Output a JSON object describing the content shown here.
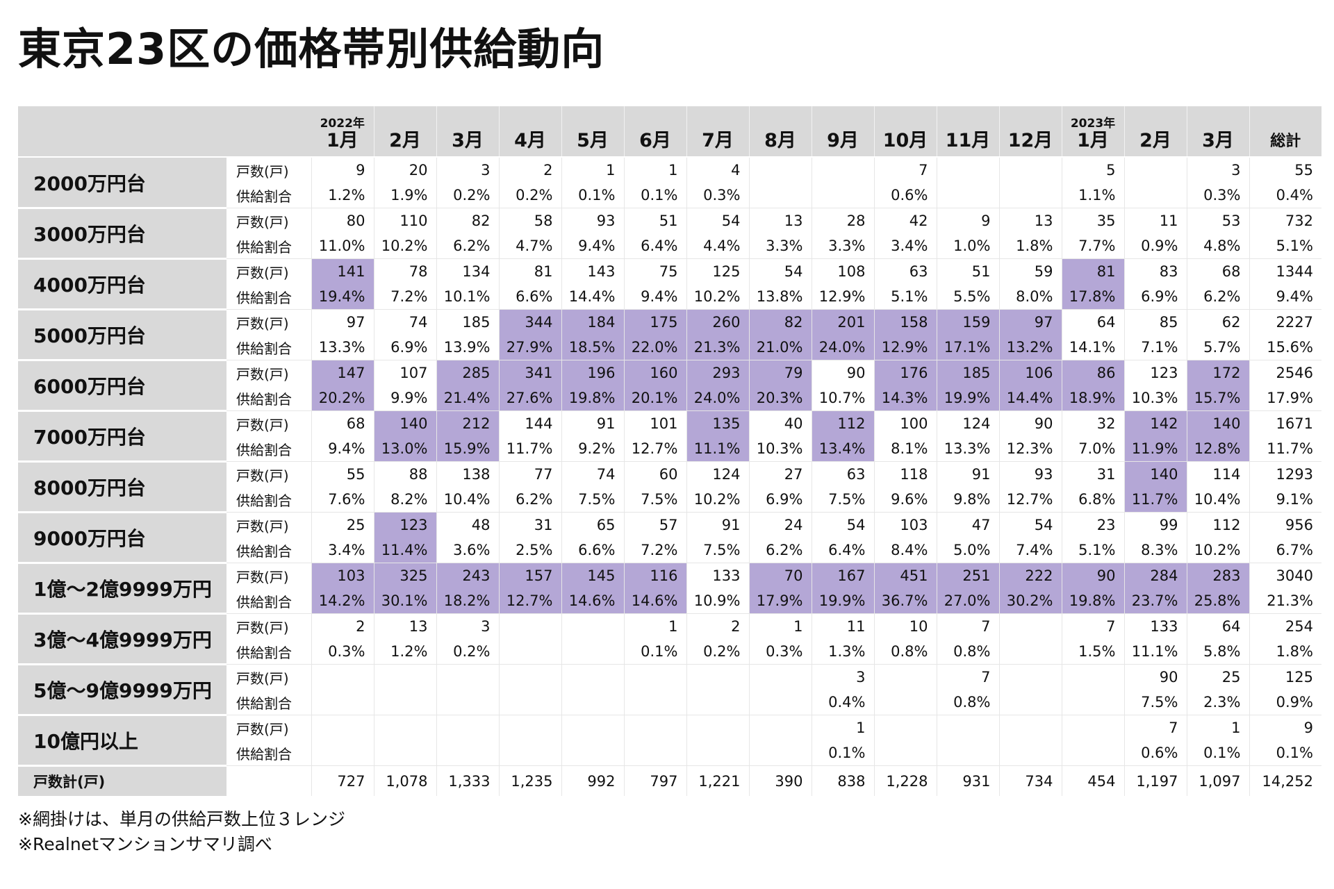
{
  "title": "東京23区の価格帯別供給動向",
  "chart_data": {
    "type": "table",
    "title": "東京23区の価格帯別供給動向",
    "columns": [
      {
        "year": "2022年",
        "month": "1月"
      },
      {
        "year": "",
        "month": "2月"
      },
      {
        "year": "",
        "month": "3月"
      },
      {
        "year": "",
        "month": "4月"
      },
      {
        "year": "",
        "month": "5月"
      },
      {
        "year": "",
        "month": "6月"
      },
      {
        "year": "",
        "month": "7月"
      },
      {
        "year": "",
        "month": "8月"
      },
      {
        "year": "",
        "month": "9月"
      },
      {
        "year": "",
        "month": "10月"
      },
      {
        "year": "",
        "month": "11月"
      },
      {
        "year": "",
        "month": "12月"
      },
      {
        "year": "2023年",
        "month": "1月"
      },
      {
        "year": "",
        "month": "2月"
      },
      {
        "year": "",
        "month": "3月"
      }
    ],
    "total_label": "総計",
    "count_label": "戸数(戸)",
    "share_label": "供給割合",
    "highlight_color": "#b4a7d6",
    "rows": [
      {
        "category": "2000万円台",
        "counts": [
          "9",
          "20",
          "3",
          "2",
          "1",
          "1",
          "4",
          "",
          "",
          "7",
          "",
          "",
          "5",
          "",
          "3"
        ],
        "count_total": "55",
        "shares": [
          "1.2%",
          "1.9%",
          "0.2%",
          "0.2%",
          "0.1%",
          "0.1%",
          "0.3%",
          "",
          "",
          "0.6%",
          "",
          "",
          "1.1%",
          "",
          "0.3%"
        ],
        "share_total": "0.4%",
        "highlight": []
      },
      {
        "category": "3000万円台",
        "counts": [
          "80",
          "110",
          "82",
          "58",
          "93",
          "51",
          "54",
          "13",
          "28",
          "42",
          "9",
          "13",
          "35",
          "11",
          "53"
        ],
        "count_total": "732",
        "shares": [
          "11.0%",
          "10.2%",
          "6.2%",
          "4.7%",
          "9.4%",
          "6.4%",
          "4.4%",
          "3.3%",
          "3.3%",
          "3.4%",
          "1.0%",
          "1.8%",
          "7.7%",
          "0.9%",
          "4.8%"
        ],
        "share_total": "5.1%",
        "highlight": []
      },
      {
        "category": "4000万円台",
        "counts": [
          "141",
          "78",
          "134",
          "81",
          "143",
          "75",
          "125",
          "54",
          "108",
          "63",
          "51",
          "59",
          "81",
          "83",
          "68"
        ],
        "count_total": "1344",
        "shares": [
          "19.4%",
          "7.2%",
          "10.1%",
          "6.6%",
          "14.4%",
          "9.4%",
          "10.2%",
          "13.8%",
          "12.9%",
          "5.1%",
          "5.5%",
          "8.0%",
          "17.8%",
          "6.9%",
          "6.2%"
        ],
        "share_total": "9.4%",
        "highlight": [
          0,
          12
        ]
      },
      {
        "category": "5000万円台",
        "counts": [
          "97",
          "74",
          "185",
          "344",
          "184",
          "175",
          "260",
          "82",
          "201",
          "158",
          "159",
          "97",
          "64",
          "85",
          "62"
        ],
        "count_total": "2227",
        "shares": [
          "13.3%",
          "6.9%",
          "13.9%",
          "27.9%",
          "18.5%",
          "22.0%",
          "21.3%",
          "21.0%",
          "24.0%",
          "12.9%",
          "17.1%",
          "13.2%",
          "14.1%",
          "7.1%",
          "5.7%"
        ],
        "share_total": "15.6%",
        "highlight": [
          3,
          4,
          5,
          6,
          7,
          8,
          9,
          10,
          11
        ]
      },
      {
        "category": "6000万円台",
        "counts": [
          "147",
          "107",
          "285",
          "341",
          "196",
          "160",
          "293",
          "79",
          "90",
          "176",
          "185",
          "106",
          "86",
          "123",
          "172"
        ],
        "count_total": "2546",
        "shares": [
          "20.2%",
          "9.9%",
          "21.4%",
          "27.6%",
          "19.8%",
          "20.1%",
          "24.0%",
          "20.3%",
          "10.7%",
          "14.3%",
          "19.9%",
          "14.4%",
          "18.9%",
          "10.3%",
          "15.7%"
        ],
        "share_total": "17.9%",
        "highlight": [
          0,
          2,
          3,
          4,
          5,
          6,
          7,
          9,
          10,
          11,
          12,
          14
        ]
      },
      {
        "category": "7000万円台",
        "counts": [
          "68",
          "140",
          "212",
          "144",
          "91",
          "101",
          "135",
          "40",
          "112",
          "100",
          "124",
          "90",
          "32",
          "142",
          "140"
        ],
        "count_total": "1671",
        "shares": [
          "9.4%",
          "13.0%",
          "15.9%",
          "11.7%",
          "9.2%",
          "12.7%",
          "11.1%",
          "10.3%",
          "13.4%",
          "8.1%",
          "13.3%",
          "12.3%",
          "7.0%",
          "11.9%",
          "12.8%"
        ],
        "share_total": "11.7%",
        "highlight": [
          1,
          2,
          6,
          8,
          13,
          14
        ]
      },
      {
        "category": "8000万円台",
        "counts": [
          "55",
          "88",
          "138",
          "77",
          "74",
          "60",
          "124",
          "27",
          "63",
          "118",
          "91",
          "93",
          "31",
          "140",
          "114"
        ],
        "count_total": "1293",
        "shares": [
          "7.6%",
          "8.2%",
          "10.4%",
          "6.2%",
          "7.5%",
          "7.5%",
          "10.2%",
          "6.9%",
          "7.5%",
          "9.6%",
          "9.8%",
          "12.7%",
          "6.8%",
          "11.7%",
          "10.4%"
        ],
        "share_total": "9.1%",
        "highlight": [
          13
        ]
      },
      {
        "category": "9000万円台",
        "counts": [
          "25",
          "123",
          "48",
          "31",
          "65",
          "57",
          "91",
          "24",
          "54",
          "103",
          "47",
          "54",
          "23",
          "99",
          "112"
        ],
        "count_total": "956",
        "shares": [
          "3.4%",
          "11.4%",
          "3.6%",
          "2.5%",
          "6.6%",
          "7.2%",
          "7.5%",
          "6.2%",
          "6.4%",
          "8.4%",
          "5.0%",
          "7.4%",
          "5.1%",
          "8.3%",
          "10.2%"
        ],
        "share_total": "6.7%",
        "highlight": [
          1
        ]
      },
      {
        "category": "1億～2億9999万円",
        "counts": [
          "103",
          "325",
          "243",
          "157",
          "145",
          "116",
          "133",
          "70",
          "167",
          "451",
          "251",
          "222",
          "90",
          "284",
          "283"
        ],
        "count_total": "3040",
        "shares": [
          "14.2%",
          "30.1%",
          "18.2%",
          "12.7%",
          "14.6%",
          "14.6%",
          "10.9%",
          "17.9%",
          "19.9%",
          "36.7%",
          "27.0%",
          "30.2%",
          "19.8%",
          "23.7%",
          "25.8%"
        ],
        "share_total": "21.3%",
        "highlight": [
          0,
          1,
          2,
          3,
          4,
          5,
          7,
          8,
          9,
          10,
          11,
          12,
          13,
          14
        ]
      },
      {
        "category": "3億～4億9999万円",
        "counts": [
          "2",
          "13",
          "3",
          "",
          "",
          "1",
          "2",
          "1",
          "11",
          "10",
          "7",
          "",
          "7",
          "133",
          "64"
        ],
        "count_total": "254",
        "shares": [
          "0.3%",
          "1.2%",
          "0.2%",
          "",
          "",
          "0.1%",
          "0.2%",
          "0.3%",
          "1.3%",
          "0.8%",
          "0.8%",
          "",
          "1.5%",
          "11.1%",
          "5.8%"
        ],
        "share_total": "1.8%",
        "highlight": []
      },
      {
        "category": "5億～9億9999万円",
        "counts": [
          "",
          "",
          "",
          "",
          "",
          "",
          "",
          "",
          "3",
          "",
          "7",
          "",
          "",
          "90",
          "25"
        ],
        "count_total": "125",
        "shares": [
          "",
          "",
          "",
          "",
          "",
          "",
          "",
          "",
          "0.4%",
          "",
          "0.8%",
          "",
          "",
          "7.5%",
          "2.3%"
        ],
        "share_total": "0.9%",
        "highlight": []
      },
      {
        "category": "10億円以上",
        "counts": [
          "",
          "",
          "",
          "",
          "",
          "",
          "",
          "",
          "1",
          "",
          "",
          "",
          "",
          "7",
          "1"
        ],
        "count_total": "9",
        "shares": [
          "",
          "",
          "",
          "",
          "",
          "",
          "",
          "",
          "0.1%",
          "",
          "",
          "",
          "",
          "0.6%",
          "0.1%"
        ],
        "share_total": "0.1%",
        "highlight": []
      }
    ],
    "totals_label": "戸数計(戸)",
    "totals": [
      "727",
      "1,078",
      "1,333",
      "1,235",
      "992",
      "797",
      "1,221",
      "390",
      "838",
      "1,228",
      "931",
      "734",
      "454",
      "1,197",
      "1,097"
    ],
    "grand_total": "14,252"
  },
  "notes": [
    "※網掛けは、単月の供給戸数上位３レンジ",
    "※Realnetマンションサマリ調べ"
  ]
}
